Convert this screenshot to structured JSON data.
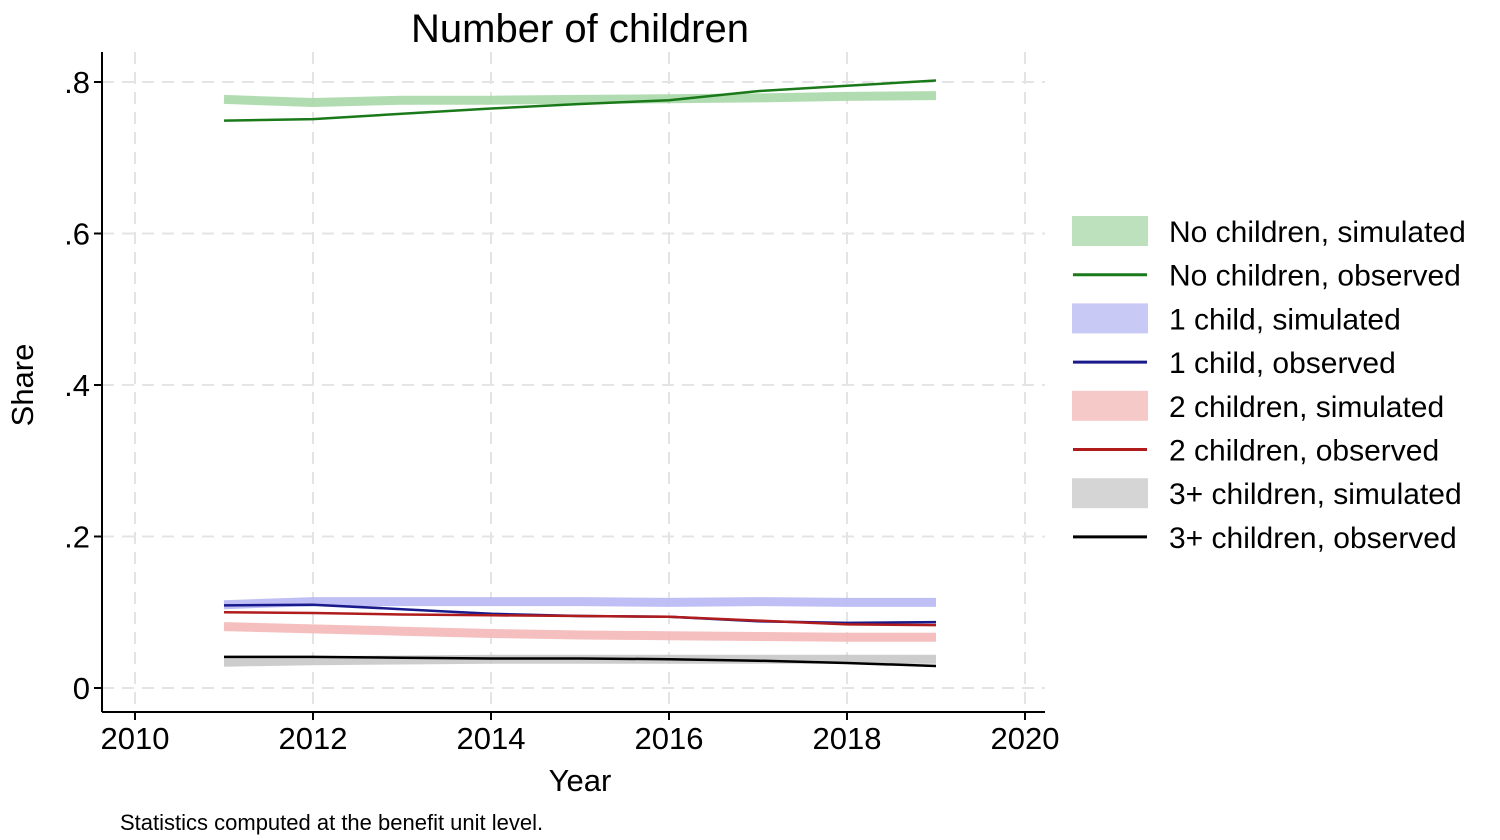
{
  "chart_data": {
    "type": "line",
    "title": "Number of children",
    "xlabel": "Year",
    "ylabel": "Share",
    "note": "Statistics computed at the benefit unit level.",
    "xlim": [
      2010,
      2020
    ],
    "ylim": [
      0,
      0.8
    ],
    "xticks": [
      2010,
      2012,
      2014,
      2016,
      2018,
      2020
    ],
    "xtick_labels": [
      "2010",
      "2012",
      "2014",
      "2016",
      "2018",
      "2020"
    ],
    "yticks": [
      0,
      0.2,
      0.4,
      0.6,
      0.8
    ],
    "ytick_labels": [
      "0",
      ".2",
      ".4",
      ".6",
      ".8"
    ],
    "grid": true,
    "legend_position": "right",
    "x": [
      2011,
      2012,
      2013,
      2014,
      2015,
      2016,
      2017,
      2018,
      2019
    ],
    "series": [
      {
        "name": "No children, simulated",
        "style": "band",
        "color": "#a8d8a8",
        "values": [
          0.777,
          0.773,
          0.776,
          0.776,
          0.777,
          0.778,
          0.779,
          0.781,
          0.782
        ]
      },
      {
        "name": "No children, observed",
        "style": "line",
        "color": "#1a7a1a",
        "values": [
          0.749,
          0.751,
          0.758,
          0.765,
          0.771,
          0.776,
          0.788,
          0.795,
          0.802
        ]
      },
      {
        "name": "1 child, simulated",
        "style": "band",
        "color": "#b8b8f4",
        "values": [
          0.11,
          0.114,
          0.114,
          0.114,
          0.114,
          0.113,
          0.114,
          0.113,
          0.113
        ]
      },
      {
        "name": "1 child, observed",
        "style": "line",
        "color": "#1a1a8c",
        "values": [
          0.109,
          0.11,
          0.104,
          0.098,
          0.095,
          0.094,
          0.088,
          0.086,
          0.087
        ]
      },
      {
        "name": "2 children, simulated",
        "style": "band",
        "color": "#f4b8b8",
        "values": [
          0.081,
          0.078,
          0.075,
          0.072,
          0.07,
          0.069,
          0.068,
          0.067,
          0.067
        ]
      },
      {
        "name": "2 children, observed",
        "style": "line",
        "color": "#b01c1c",
        "values": [
          0.1,
          0.099,
          0.097,
          0.096,
          0.095,
          0.094,
          0.089,
          0.084,
          0.083
        ]
      },
      {
        "name": "3+ children, simulated",
        "style": "band",
        "color": "#c8c8c8",
        "values": [
          0.034,
          0.036,
          0.037,
          0.038,
          0.038,
          0.038,
          0.038,
          0.038,
          0.038
        ]
      },
      {
        "name": "3+ children, observed",
        "style": "line",
        "color": "#000000",
        "values": [
          0.041,
          0.041,
          0.04,
          0.039,
          0.039,
          0.038,
          0.036,
          0.033,
          0.029
        ]
      }
    ]
  }
}
